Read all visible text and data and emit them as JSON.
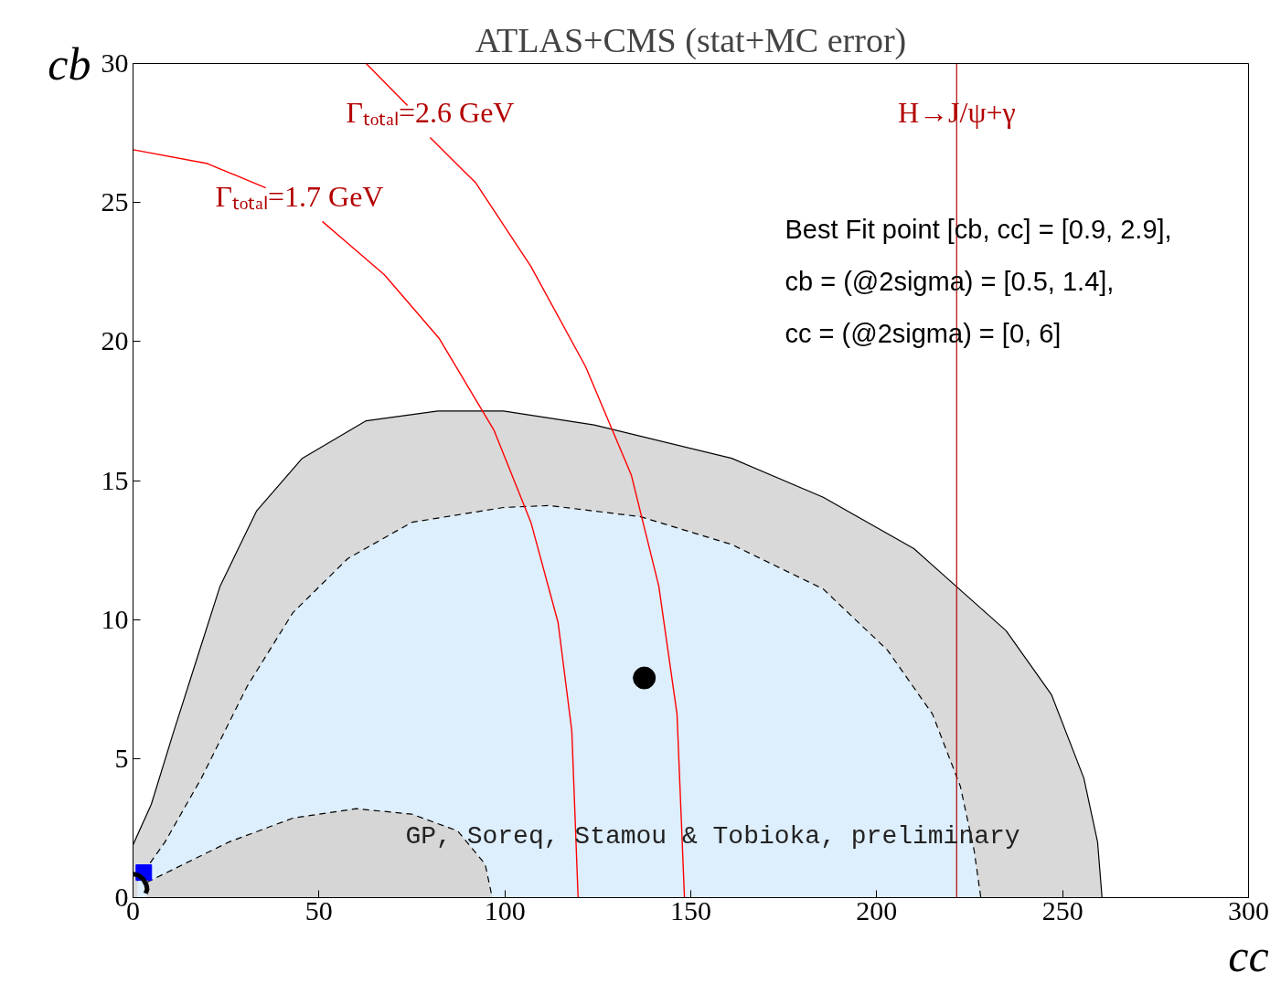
{
  "chart_data": {
    "type": "area",
    "title": "ATLAS+CMS (stat+MC error)",
    "xlabel": "cc",
    "ylabel": "cb",
    "xlim": [
      0,
      300
    ],
    "ylim": [
      0,
      30
    ],
    "xticks": [
      0,
      50,
      100,
      150,
      200,
      250,
      300
    ],
    "yticks": [
      0,
      5,
      10,
      15,
      20,
      25,
      30
    ],
    "series": [
      {
        "color": "#d9d9d9",
        "line_style": "solid",
        "x": [
          0,
          4.9,
          11,
          17.2,
          23.4,
          33.2,
          45.5,
          62.7,
          82,
          99.6,
          124,
          161,
          185.6,
          210,
          234.8,
          247,
          255.7,
          259.4,
          260.6
        ],
        "values": [
          1.9,
          3.35,
          6,
          8.6,
          11.2,
          13.9,
          15.8,
          17.15,
          17.5,
          17.5,
          17,
          15.8,
          14.4,
          12.55,
          9.6,
          7.3,
          4.3,
          2,
          0
        ]
      },
      {
        "color": "#ddeefc",
        "line_style": "dashed",
        "x": [
          1.2,
          8.6,
          18.4,
          30.7,
          43,
          57.8,
          75,
          99.6,
          112,
          136.5,
          161,
          185.6,
          202.9,
          215,
          222.5,
          226.2,
          228
        ],
        "values": [
          0.6,
          2,
          4.3,
          7.6,
          10.25,
          12.2,
          13.5,
          14.03,
          14.1,
          13.7,
          12.7,
          11.1,
          8.9,
          6.6,
          4,
          1.7,
          0
        ]
      },
      {
        "color": "#d6d6d6",
        "line_style": "dashed",
        "x": [
          3.7,
          25.8,
          43,
          60,
          75,
          87.3,
          94.7,
          96.6
        ],
        "values": [
          0.55,
          2,
          2.86,
          3.2,
          3.0,
          2.4,
          1.2,
          0
        ]
      },
      {
        "type": "line",
        "color": "#ff0000",
        "line_style": "solid",
        "x": [
          0,
          20,
          35.7,
          43,
          50.9,
          67.6,
          82.4,
          97.1,
          107,
          114.3,
          118,
          119.7
        ],
        "values": [
          26.9,
          26.4,
          25.53,
          null,
          24.32,
          22.4,
          20.1,
          16.8,
          13.5,
          9.9,
          6,
          0
        ]
      },
      {
        "type": "line",
        "color": "#ff0000",
        "line_style": "solid",
        "x": [
          62.7,
          73.8,
          77,
          79.9,
          92.2,
          107,
          121.7,
          134,
          141.4,
          146.3,
          148.3
        ],
        "values": [
          30,
          28.49,
          null,
          27.34,
          25.7,
          22.7,
          19.1,
          15.2,
          11.2,
          6.6,
          0
        ]
      },
      {
        "type": "scatter",
        "color": "#0000ff",
        "marker": "square",
        "x": [
          2.9
        ],
        "values": [
          0.9
        ]
      },
      {
        "type": "line",
        "color": "#000000",
        "line_style": "solid",
        "x": [
          0,
          1.5,
          2.8,
          3.6,
          3.8,
          3.4
        ],
        "values": [
          0.85,
          0.8,
          0.65,
          0.45,
          0.3,
          0.15
        ]
      },
      {
        "type": "scatter",
        "color": "#000000",
        "marker": "circle",
        "x": [
          137.5
        ],
        "values": [
          7.9
        ]
      }
    ],
    "ref_lines": [
      {
        "axis": "x",
        "value": 221.5,
        "label": "H→J/ψ+γ",
        "color": "#b30000"
      }
    ],
    "annotations": [
      "Best Fit point [cb, cc] = [0.9, 2.9],",
      "cb = (@2sigma) = [0.5, 1.4],",
      "cc = (@2sigma) = [0, 6]",
      "GP, Soreq, Stamou & Tobioka, preliminary",
      "Γₜₒₜₐₗ=1.7 GeV",
      "Γₜₒₜₐₗ=2.6 GeV"
    ]
  }
}
